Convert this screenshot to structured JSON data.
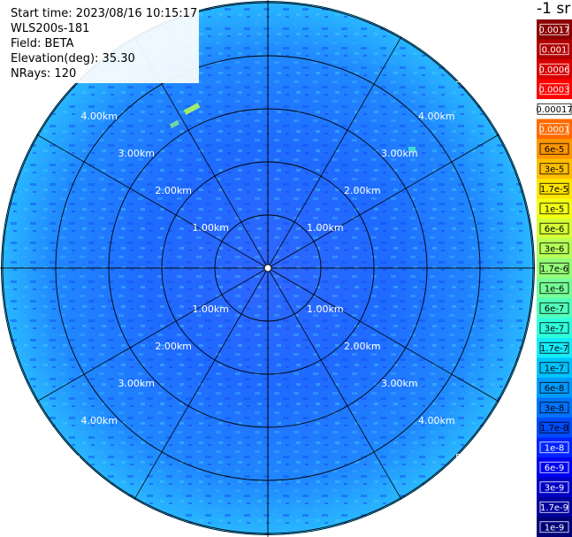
{
  "info": {
    "start_time": "Start time: 2023/08/16 10:15:17",
    "instrument": "WLS200s-181",
    "field": "Field: BETA",
    "elevation": "Elevation(deg): 35.30",
    "nrays": "NRays: 120"
  },
  "colorbar": {
    "unit": "-1 sr",
    "labels": [
      "0.0017",
      "0.001",
      "0.0006",
      "0.0003",
      "0.00017",
      "0.0001",
      "6e-5",
      "3e-5",
      "1.7e-5",
      "1e-5",
      "6e-6",
      "3e-6",
      "1.7e-6",
      "1e-6",
      "6e-7",
      "3e-7",
      "1.7e-7",
      "1e-7",
      "6e-8",
      "3e-8",
      "1.7e-8",
      "1e-8",
      "6e-9",
      "3e-9",
      "1.7e-9",
      "1e-9"
    ],
    "colors": [
      "#8b0000",
      "#b00000",
      "#d80000",
      "#ff0000",
      "#ffffff",
      "#ff6a00",
      "#ff9600",
      "#ffbe00",
      "#ffe400",
      "#f4ff14",
      "#d6ff36",
      "#b6ff58",
      "#96ff78",
      "#76ff98",
      "#52ffba",
      "#30ffde",
      "#14ecf8",
      "#00c4ff",
      "#009cff",
      "#0074ff",
      "#004cff",
      "#0024ff",
      "#0000f0",
      "#0000c4",
      "#00009c",
      "#000076"
    ],
    "text_colors": [
      "#ffffff",
      "#ffffff",
      "#ffffff",
      "#ffffff",
      "#000000",
      "#ffffff",
      "#000000",
      "#000000",
      "#000000",
      "#000000",
      "#000000",
      "#000000",
      "#000000",
      "#000000",
      "#000000",
      "#000000",
      "#000000",
      "#000000",
      "#000000",
      "#000000",
      "#000000",
      "#ffffff",
      "#ffffff",
      "#ffffff",
      "#ffffff",
      "#ffffff"
    ]
  },
  "range_rings": {
    "labels": [
      "1.00km",
      "2.00km",
      "3.00km",
      "4.00km",
      "5.00km"
    ],
    "max_range_km": 5.0
  },
  "plot": {
    "n_spokes": 12,
    "background_color": "#1e6cff",
    "edge_color": "#18b4ff"
  }
}
